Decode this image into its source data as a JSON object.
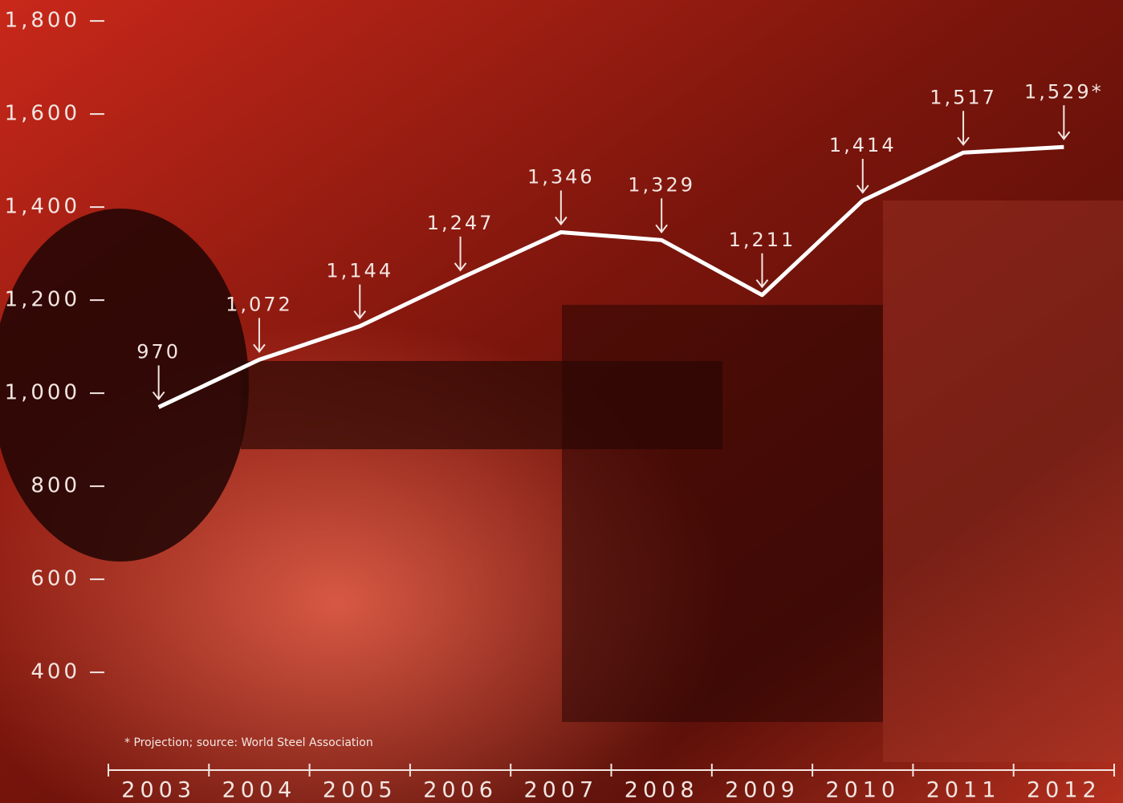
{
  "chart_data": {
    "type": "line",
    "categories": [
      "2003",
      "2004",
      "2005",
      "2006",
      "2007",
      "2008",
      "2009",
      "2010",
      "2011",
      "2012"
    ],
    "values": [
      970,
      1072,
      1144,
      1247,
      1346,
      1329,
      1211,
      1414,
      1517,
      1529
    ],
    "value_labels": [
      "970",
      "1,072",
      "1,144",
      "1,247",
      "1,346",
      "1,329",
      "1,211",
      "1,414",
      "1,517",
      "1,529*"
    ],
    "color": "#ffffff",
    "ylim": [
      190,
      1845
    ],
    "yticks": [
      400,
      600,
      800,
      {
        "value": 1000,
        "label": "1,000"
      },
      {
        "value": 1200,
        "label": "1,200"
      },
      {
        "value": 1400,
        "label": "1,400"
      },
      {
        "value": 1600,
        "label": "1,600"
      },
      {
        "value": 1800,
        "label": "1,800"
      }
    ],
    "footnote": "* Projection; source: World Steel Association"
  }
}
